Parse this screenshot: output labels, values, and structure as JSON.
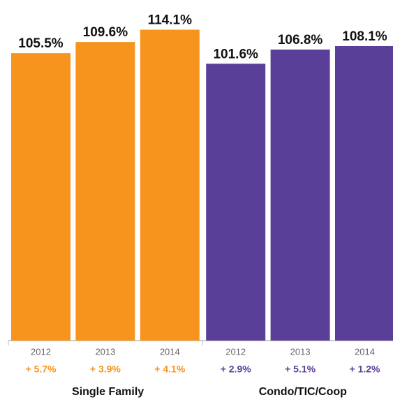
{
  "chart_data": {
    "type": "bar",
    "ylim": [
      0,
      125
    ],
    "groups": [
      {
        "name": "Single Family",
        "color": "#f7941d",
        "categories": [
          "2012",
          "2013",
          "2014"
        ],
        "values": [
          105.5,
          109.6,
          114.1
        ],
        "value_labels": [
          "105.5%",
          "109.6%",
          "114.1%"
        ],
        "changes": [
          "+ 5.7%",
          "+ 3.9%",
          "+ 4.1%"
        ]
      },
      {
        "name": "Condo/TIC/Coop",
        "color": "#5a3f99",
        "categories": [
          "2012",
          "2013",
          "2014"
        ],
        "values": [
          101.6,
          106.8,
          108.1
        ],
        "value_labels": [
          "101.6%",
          "106.8%",
          "108.1%"
        ],
        "changes": [
          "+ 2.9%",
          "+ 5.1%",
          "+ 1.2%"
        ]
      }
    ]
  }
}
